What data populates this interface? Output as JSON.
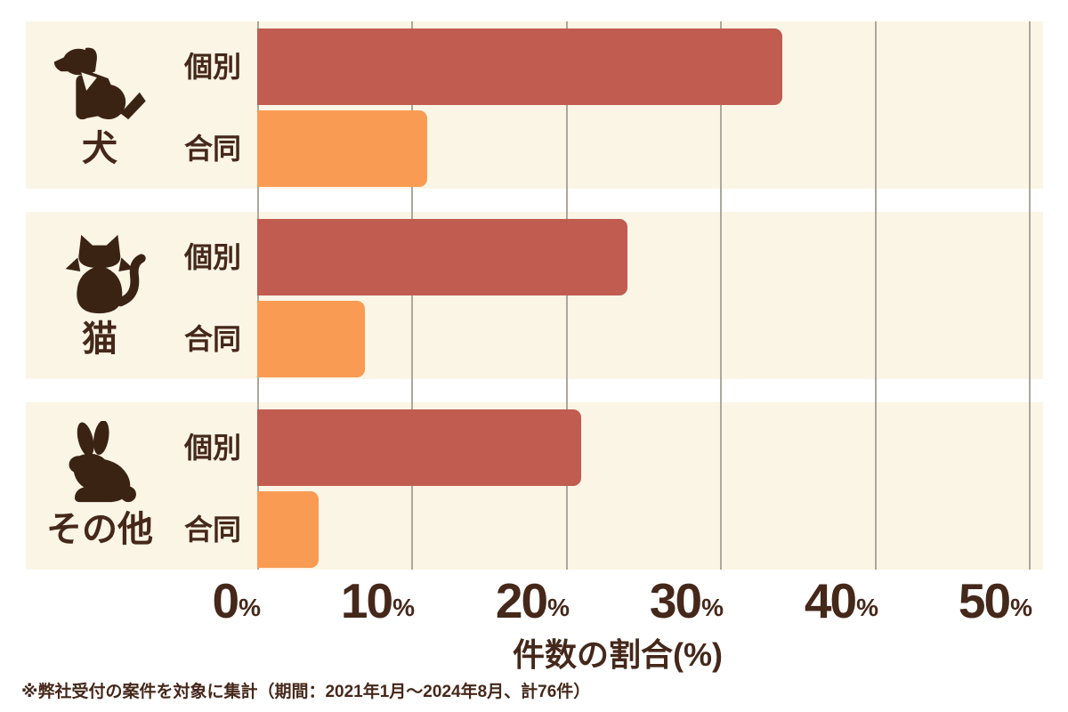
{
  "chart_data": {
    "type": "bar",
    "orientation": "horizontal",
    "xlabel": "件数の割合(%)",
    "xlim": [
      0,
      50
    ],
    "x_ticks": [
      "0",
      "10",
      "20",
      "30",
      "40",
      "50"
    ],
    "tick_suffix": "%",
    "grid": "vertical",
    "series_colors": {
      "individual": "#C15C50",
      "joint": "#F99B53"
    },
    "panel_background": "#FBF5E6",
    "text_color": "#45281A",
    "groups": [
      {
        "category": "犬",
        "icon": "dog-icon",
        "bars": [
          {
            "label": "個別",
            "series": "individual",
            "value": 34
          },
          {
            "label": "合同",
            "series": "joint",
            "value": 11
          }
        ]
      },
      {
        "category": "猫",
        "icon": "cat-icon",
        "bars": [
          {
            "label": "個別",
            "series": "individual",
            "value": 24
          },
          {
            "label": "合同",
            "series": "joint",
            "value": 7
          }
        ]
      },
      {
        "category": "その他",
        "icon": "rabbit-icon",
        "bars": [
          {
            "label": "個別",
            "series": "individual",
            "value": 21
          },
          {
            "label": "合同",
            "series": "joint",
            "value": 4
          }
        ]
      }
    ],
    "footnote": "※弊社受付の案件を対象に集計（期間：2021年1月～2024年8月、計76件）"
  }
}
